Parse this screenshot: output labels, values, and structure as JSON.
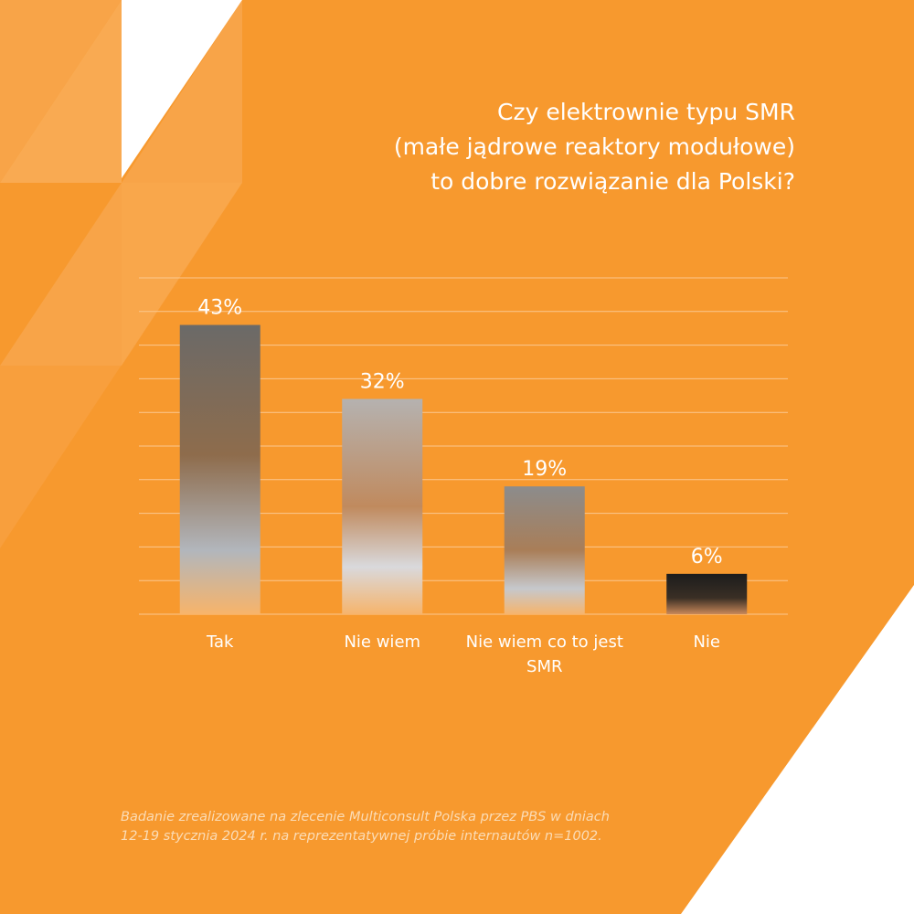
{
  "title_lines": [
    "Czy elektrownie typu SMR",
    "(małe jądrowe reaktory modułowe)",
    "to dobre rozwiązanie dla Polski?"
  ],
  "footnote_lines": [
    "Badanie zrealizowane na zlecenie Multiconsult Polska przez PBS w dniach",
    "12-19 stycznia 2024 r. na reprezentatywnej próbie internautów n=1002."
  ],
  "colors": {
    "background": "#f7992e",
    "text": "#ffffff",
    "footnote": "#fbdcb6",
    "gridline": "#fbc890"
  },
  "chart_data": {
    "type": "bar",
    "categories": [
      "Tak",
      "Nie wiem",
      "Nie wiem co to jest SMR",
      "Nie"
    ],
    "category_label_lines": [
      [
        "Tak"
      ],
      [
        "Nie wiem"
      ],
      [
        "Nie wiem co to jest",
        "SMR"
      ],
      [
        "Nie"
      ]
    ],
    "values": [
      43,
      32,
      19,
      6
    ],
    "data_labels": [
      "43%",
      "32%",
      "19%",
      "6%"
    ],
    "unit": "%",
    "ylim": [
      0,
      50
    ],
    "gridlines": true,
    "legend": "none",
    "bar_styles": [
      "dark-grey-gradient",
      "light-grey-gradient",
      "grey-gradient",
      "black-gradient"
    ]
  }
}
